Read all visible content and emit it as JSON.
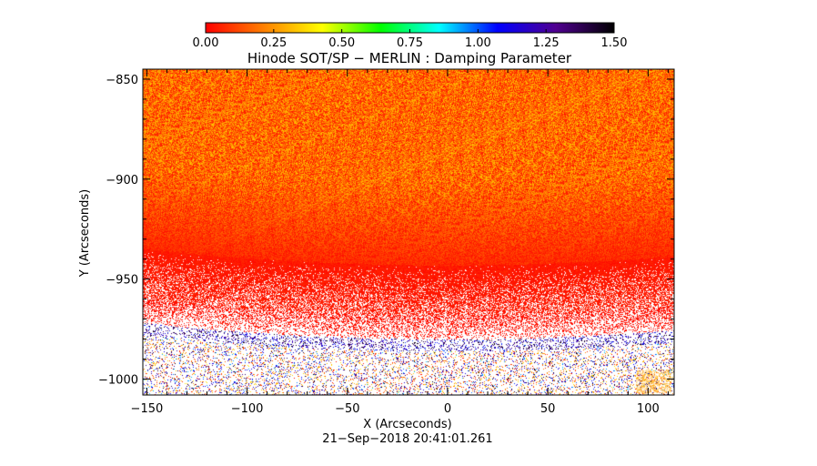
{
  "chart_data": {
    "type": "heatmap",
    "title": "Hinode SOT/SP − MERLIN : Damping Parameter",
    "xlabel": "X (Arcseconds)",
    "ylabel": "Y (Arcseconds)",
    "timestamp": "21−Sep−2018 20:41:01.261",
    "xlim": [
      -152,
      113
    ],
    "ylim": [
      -1008,
      -845
    ],
    "x_ticks": [
      -150,
      -100,
      -50,
      0,
      50,
      100
    ],
    "x_tick_labels": [
      "−150",
      "−100",
      "−50",
      "0",
      "50",
      "100"
    ],
    "y_ticks": [
      -850,
      -900,
      -950,
      -1000
    ],
    "y_tick_labels": [
      "−850",
      "−900",
      "−950",
      "−1000"
    ],
    "colorbar": {
      "range": [
        0,
        1.5
      ],
      "ticks": [
        0,
        0.25,
        0.5,
        0.75,
        1.0,
        1.25,
        1.5
      ],
      "tick_labels": [
        "0.00",
        "0.25",
        "0.50",
        "0.75",
        "1.00",
        "1.25",
        "1.50"
      ],
      "colors": [
        "#ff0000",
        "#ff8000",
        "#ffff00",
        "#00ff00",
        "#00ffff",
        "#0000ff",
        "#500090",
        "#000000"
      ]
    },
    "limb_y_center_x0": -983,
    "limb_y_edges": -975,
    "value_bands": [
      {
        "y_from": -845,
        "y_to": -905,
        "typical_value": 0.18,
        "fill": "dense"
      },
      {
        "y_from": -905,
        "y_to": -945,
        "typical_value": 0.08,
        "fill": "dense"
      },
      {
        "y_from": -945,
        "y_to": -975,
        "typical_value": 0.03,
        "fill": "sparse"
      },
      {
        "y_from": -975,
        "y_to": -1008,
        "typical_value": "noisy 0.0–1.5",
        "fill": "sparse"
      }
    ]
  }
}
